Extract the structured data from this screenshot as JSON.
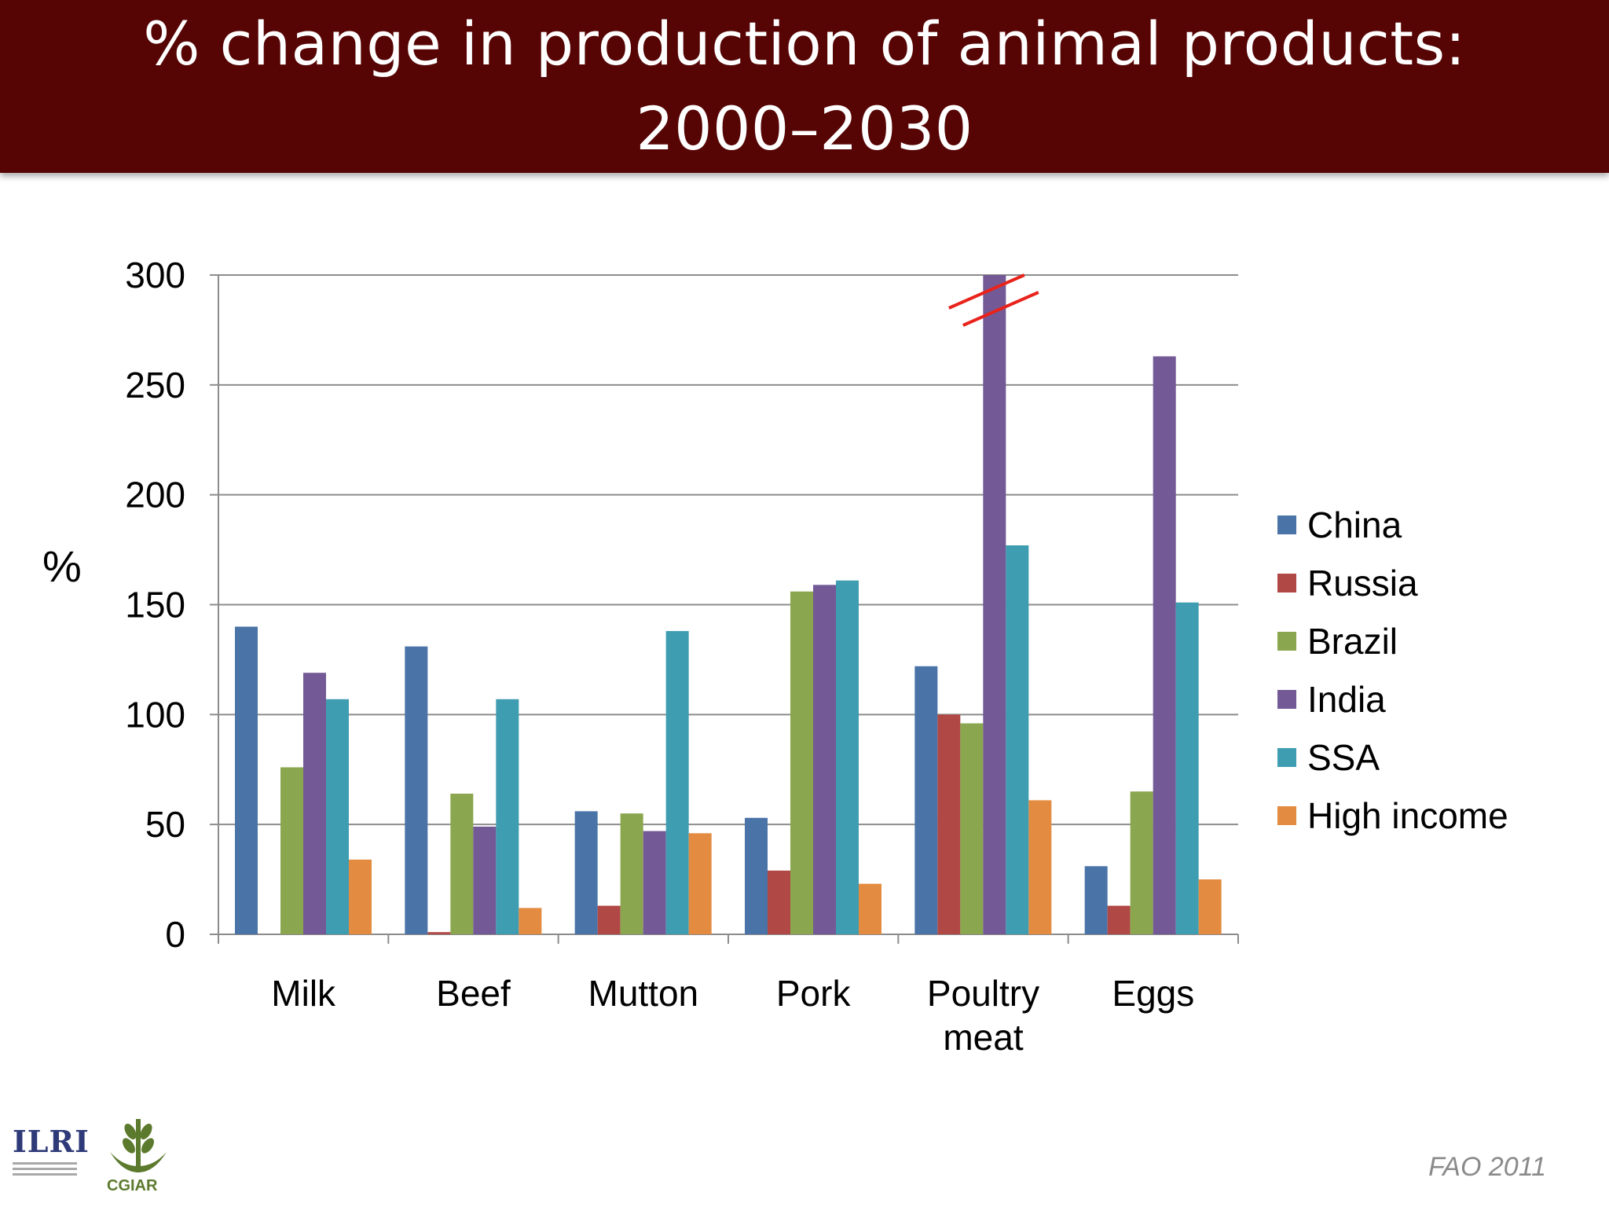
{
  "header": {
    "title_line1": "% change in production of animal products:",
    "title_line2": "2000–2030"
  },
  "source_note": "FAO 2011",
  "logos": {
    "ilri": "ILRI",
    "cgiar": "CGIAR"
  },
  "chart_data": {
    "type": "bar",
    "title": "% change in production of animal products: 2000–2030",
    "ylabel": "%",
    "xlabel": "",
    "ylim": [
      0,
      300
    ],
    "yticks": [
      0,
      50,
      100,
      150,
      200,
      250,
      300
    ],
    "grid": true,
    "legend_position": "right",
    "categories": [
      "Milk",
      "Beef",
      "Mutton",
      "Pork",
      "Poultry meat",
      "Eggs"
    ],
    "series": [
      {
        "name": "China",
        "color": "#4a73a8",
        "values": [
          140,
          131,
          56,
          53,
          122,
          31
        ]
      },
      {
        "name": "Russia",
        "color": "#b04945",
        "values": [
          0,
          1,
          13,
          29,
          100,
          13
        ]
      },
      {
        "name": "Brazil",
        "color": "#8aa64e",
        "values": [
          76,
          64,
          55,
          156,
          96,
          65
        ]
      },
      {
        "name": "India",
        "color": "#735a96",
        "values": [
          119,
          49,
          47,
          159,
          300,
          263
        ]
      },
      {
        "name": "SSA",
        "color": "#3f9db1",
        "values": [
          107,
          107,
          138,
          161,
          177,
          151
        ]
      },
      {
        "name": "High income",
        "color": "#e38b40",
        "values": [
          34,
          12,
          46,
          23,
          61,
          25
        ]
      }
    ],
    "axis_break": {
      "category": "Poultry meat",
      "series": "India",
      "marker_color": "#e8231b"
    }
  }
}
